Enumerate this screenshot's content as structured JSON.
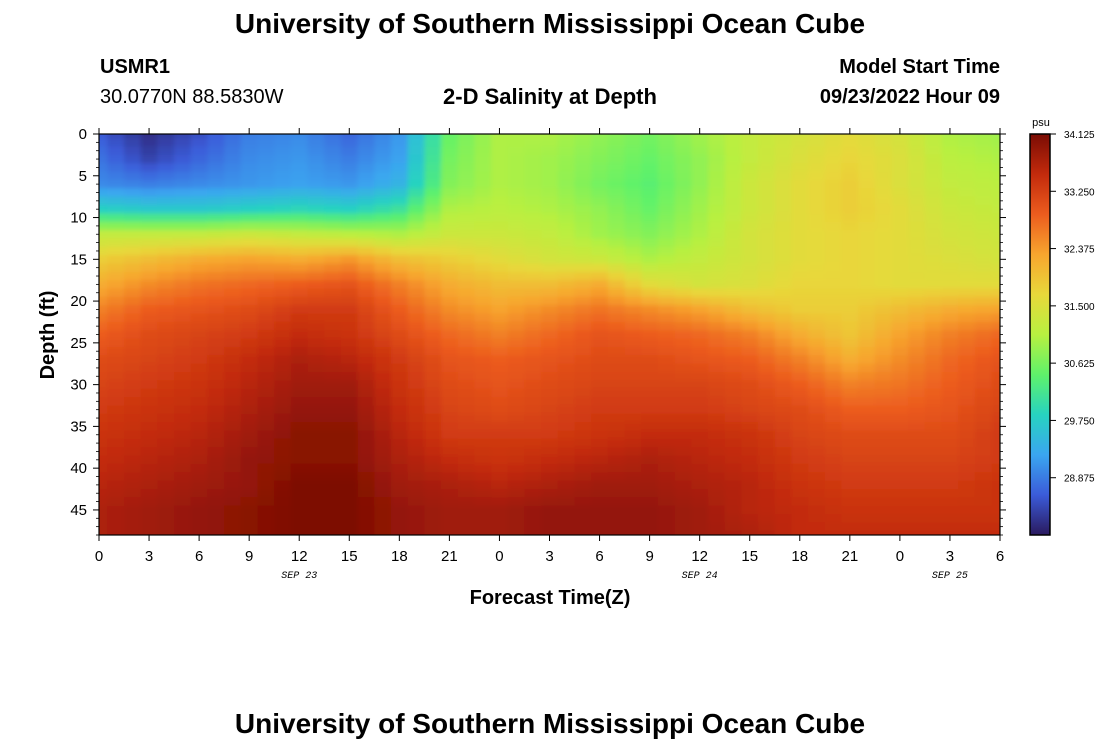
{
  "page": {
    "title": "University of Southern Mississippi Ocean Cube",
    "footer_title": "University of Southern Mississippi Ocean Cube",
    "station_id": "USMR1",
    "station_coords": "30.0770N  88.5830W",
    "plot_title": "2-D Salinity at Depth",
    "model_start_label": "Model Start Time",
    "model_start_value": "09/23/2022 Hour 09"
  },
  "chart_data": {
    "type": "heatmap",
    "title": "2-D Salinity at Depth",
    "xlabel": "Forecast Time(Z)",
    "ylabel": "Depth (ft)",
    "x_tick_labels": [
      "0",
      "3",
      "6",
      "9",
      "12",
      "15",
      "18",
      "21",
      "0",
      "3",
      "6",
      "9",
      "12",
      "15",
      "18",
      "21",
      "0",
      "3",
      "6"
    ],
    "x_range_hours": [
      0,
      54
    ],
    "date_labels": [
      {
        "text": "SEP 23",
        "hour": 12
      },
      {
        "text": "SEP 24",
        "hour": 36
      },
      {
        "text": "SEP 25",
        "hour": 51
      }
    ],
    "y_ticks": [
      0,
      5,
      10,
      15,
      20,
      25,
      30,
      35,
      40,
      45
    ],
    "y_range": [
      0,
      48
    ],
    "y_inverted": true,
    "colorbar": {
      "unit": "psu",
      "ticks": [
        "34.125",
        "33.250",
        "32.375",
        "31.500",
        "30.625",
        "29.750",
        "28.875"
      ],
      "range": [
        28.0,
        34.125
      ],
      "colors": [
        "#2a1a5e",
        "#3b5bd9",
        "#3aa6f0",
        "#27d3c0",
        "#5ff26a",
        "#b8f040",
        "#e8d83a",
        "#f7a52e",
        "#ec5c1e",
        "#c22a0c",
        "#7a0c04"
      ]
    },
    "grid": false,
    "depth_levels_ft": [
      0,
      3,
      6,
      9,
      12,
      15,
      18,
      21,
      24,
      27,
      30,
      33,
      36,
      39,
      42,
      45,
      48
    ],
    "time_hours": [
      0,
      3,
      6,
      9,
      12,
      15,
      18,
      21,
      24,
      27,
      30,
      33,
      36,
      39,
      42,
      45,
      48,
      51,
      54
    ],
    "salinity_psu": [
      [
        28.6,
        28.2,
        28.5,
        28.9,
        29.0,
        28.7,
        29.1,
        30.5,
        31.0,
        31.0,
        30.8,
        30.6,
        30.9,
        31.2,
        31.4,
        31.6,
        31.4,
        31.0,
        30.9
      ],
      [
        28.8,
        28.4,
        28.7,
        29.0,
        29.1,
        28.9,
        29.2,
        30.6,
        31.0,
        30.9,
        30.7,
        30.5,
        30.8,
        31.2,
        31.5,
        31.7,
        31.5,
        31.1,
        31.0
      ],
      [
        29.0,
        28.9,
        29.0,
        29.1,
        29.2,
        29.1,
        29.4,
        30.7,
        31.0,
        30.9,
        30.6,
        30.4,
        30.8,
        31.3,
        31.6,
        31.8,
        31.5,
        31.2,
        31.1
      ],
      [
        29.8,
        29.7,
        29.7,
        29.8,
        29.9,
        29.8,
        30.1,
        31.0,
        31.1,
        31.0,
        30.8,
        30.5,
        30.9,
        31.3,
        31.6,
        31.8,
        31.6,
        31.3,
        31.2
      ],
      [
        31.2,
        31.2,
        31.2,
        31.3,
        31.2,
        31.1,
        31.0,
        31.3,
        31.3,
        31.2,
        30.9,
        30.7,
        31.0,
        31.4,
        31.6,
        31.7,
        31.6,
        31.4,
        31.3
      ],
      [
        31.8,
        32.0,
        32.2,
        32.3,
        32.2,
        32.4,
        32.0,
        31.8,
        31.6,
        31.4,
        31.3,
        31.0,
        31.2,
        31.4,
        31.6,
        31.7,
        31.6,
        31.5,
        31.4
      ],
      [
        32.2,
        32.5,
        32.7,
        32.8,
        32.9,
        33.0,
        32.6,
        32.2,
        32.0,
        32.0,
        32.2,
        31.6,
        31.4,
        31.5,
        31.7,
        31.7,
        31.6,
        31.6,
        31.6
      ],
      [
        32.6,
        32.9,
        33.0,
        33.1,
        33.3,
        33.3,
        32.9,
        32.5,
        32.3,
        32.5,
        32.7,
        32.5,
        32.3,
        32.0,
        31.8,
        31.8,
        32.0,
        32.2,
        32.3
      ],
      [
        32.9,
        33.1,
        33.2,
        33.3,
        33.5,
        33.4,
        33.1,
        32.8,
        32.6,
        32.8,
        33.0,
        32.9,
        32.8,
        32.6,
        32.2,
        31.9,
        32.3,
        32.6,
        32.8
      ],
      [
        33.1,
        33.2,
        33.3,
        33.5,
        33.7,
        33.6,
        33.3,
        33.0,
        32.9,
        33.0,
        33.1,
        33.1,
        33.0,
        32.9,
        32.6,
        32.2,
        32.5,
        32.8,
        33.0
      ],
      [
        33.2,
        33.3,
        33.4,
        33.6,
        33.8,
        33.8,
        33.4,
        33.1,
        33.0,
        33.1,
        33.2,
        33.2,
        33.2,
        33.1,
        32.9,
        32.6,
        32.7,
        32.9,
        33.1
      ],
      [
        33.3,
        33.4,
        33.5,
        33.7,
        33.9,
        33.9,
        33.5,
        33.2,
        33.1,
        33.2,
        33.3,
        33.3,
        33.3,
        33.2,
        33.1,
        32.9,
        32.9,
        33.0,
        33.2
      ],
      [
        33.4,
        33.5,
        33.6,
        33.8,
        34.0,
        34.0,
        33.6,
        33.3,
        33.3,
        33.3,
        33.4,
        33.5,
        33.5,
        33.4,
        33.2,
        33.1,
        33.1,
        33.1,
        33.3
      ],
      [
        33.5,
        33.6,
        33.7,
        33.9,
        34.0,
        34.0,
        33.7,
        33.5,
        33.4,
        33.5,
        33.6,
        33.7,
        33.6,
        33.5,
        33.3,
        33.2,
        33.2,
        33.2,
        33.3
      ],
      [
        33.6,
        33.7,
        33.8,
        33.9,
        34.1,
        34.1,
        33.8,
        33.7,
        33.6,
        33.7,
        33.8,
        33.8,
        33.7,
        33.6,
        33.4,
        33.3,
        33.3,
        33.3,
        33.4
      ],
      [
        33.7,
        33.8,
        33.9,
        34.0,
        34.1,
        34.1,
        33.9,
        33.8,
        33.8,
        33.9,
        33.9,
        33.9,
        33.8,
        33.6,
        33.5,
        33.4,
        33.4,
        33.4,
        33.4
      ],
      [
        33.7,
        33.8,
        33.9,
        34.0,
        34.1,
        34.1,
        33.9,
        33.8,
        33.8,
        33.9,
        33.9,
        33.9,
        33.8,
        33.7,
        33.5,
        33.5,
        33.5,
        33.5,
        33.5
      ]
    ]
  }
}
